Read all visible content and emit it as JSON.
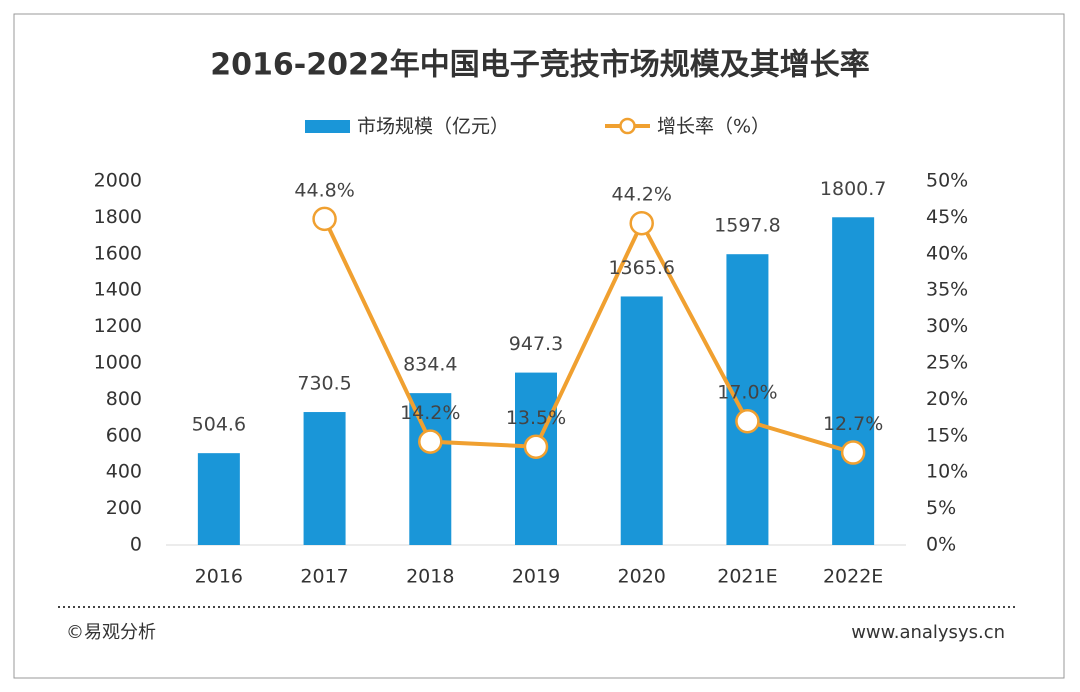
{
  "chart_data": {
    "type": "bar_line",
    "title": "2016-2022年中国电子竞技市场规模及其增长率",
    "categories": [
      "2016",
      "2017",
      "2018",
      "2019",
      "2020",
      "2021E",
      "2022E"
    ],
    "series": [
      {
        "name": "市场规模（亿元）",
        "color": "#1a96d8",
        "type": "bar",
        "values": [
          504.6,
          730.5,
          834.4,
          947.3,
          1365.6,
          1597.8,
          1800.7
        ]
      },
      {
        "name": "增长率（%）",
        "color": "#f0a030",
        "type": "line",
        "axis": "y2",
        "values": [
          null,
          44.8,
          14.2,
          13.5,
          44.2,
          17.0,
          12.7
        ],
        "value_labels": [
          null,
          "44.8%",
          "14.2%",
          "13.5%",
          "44.2%",
          "17.0%",
          "12.7%"
        ]
      }
    ],
    "ylim": [
      0,
      2000
    ],
    "yticks": [
      0,
      200,
      400,
      600,
      800,
      1000,
      1200,
      1400,
      1600,
      1800,
      2000
    ],
    "y2lim": [
      0,
      50
    ],
    "y2ticks": [
      {
        "value": 0,
        "label": "0%"
      },
      {
        "value": 5,
        "label": "5%"
      },
      {
        "value": 10,
        "label": "10%"
      },
      {
        "value": 15,
        "label": "15%"
      },
      {
        "value": 20,
        "label": "20%"
      },
      {
        "value": 25,
        "label": "25%"
      },
      {
        "value": 30,
        "label": "30%"
      },
      {
        "value": 35,
        "label": "35%"
      },
      {
        "value": 40,
        "label": "40%"
      },
      {
        "value": 45,
        "label": "45%"
      },
      {
        "value": 50,
        "label": "50%"
      }
    ]
  },
  "footer": {
    "source": "©易观分析",
    "website": "www.analysys.cn"
  }
}
